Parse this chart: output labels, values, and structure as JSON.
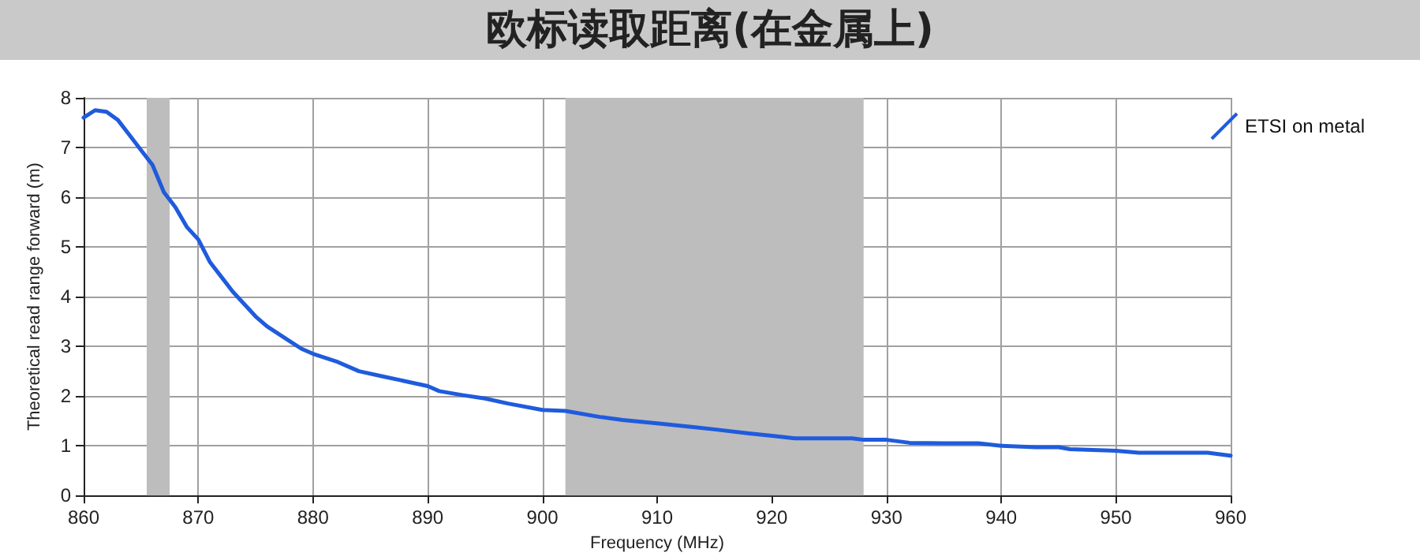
{
  "chart_data": {
    "type": "line",
    "title": "欧标读取距离(在金属上)",
    "xlabel": "Frequency (MHz)",
    "ylabel": "Theoretical read range forward (m)",
    "x": [
      860,
      861,
      862,
      863,
      864,
      865,
      866,
      867,
      868,
      869,
      870,
      871,
      872,
      873,
      874,
      875,
      876,
      877,
      878,
      879,
      880,
      882,
      884,
      886,
      888,
      890,
      891,
      893,
      895,
      897,
      900,
      902,
      905,
      907,
      910,
      913,
      915,
      918,
      920,
      922,
      925,
      927,
      928,
      930,
      932,
      935,
      938,
      940,
      943,
      945,
      946,
      950,
      952,
      955,
      958,
      960
    ],
    "series": [
      {
        "name": "ETSI on metal",
        "color": "#1f5bdc",
        "values": [
          7.6,
          7.75,
          7.72,
          7.55,
          7.25,
          6.95,
          6.65,
          6.1,
          5.8,
          5.4,
          5.15,
          4.7,
          4.4,
          4.1,
          3.85,
          3.6,
          3.4,
          3.25,
          3.1,
          2.95,
          2.85,
          2.7,
          2.5,
          2.4,
          2.3,
          2.2,
          2.1,
          2.02,
          1.95,
          1.85,
          1.72,
          1.7,
          1.58,
          1.52,
          1.45,
          1.38,
          1.33,
          1.25,
          1.2,
          1.15,
          1.15,
          1.15,
          1.12,
          1.12,
          1.06,
          1.05,
          1.05,
          1.0,
          0.97,
          0.97,
          0.93,
          0.9,
          0.86,
          0.86,
          0.86,
          0.8
        ]
      }
    ],
    "xlim": [
      860,
      960
    ],
    "xticks": [
      860,
      870,
      880,
      890,
      900,
      910,
      920,
      930,
      940,
      950,
      960
    ],
    "ylim": [
      0,
      8
    ],
    "yticks": [
      0,
      1,
      2,
      3,
      4,
      5,
      6,
      7,
      8
    ],
    "bands": [
      {
        "axis": "x",
        "from": 865.5,
        "to": 867.5,
        "color": "#bdbdbd"
      },
      {
        "axis": "x",
        "from": 902,
        "to": 928,
        "color": "#bdbdbd"
      }
    ],
    "grid": true,
    "legend": "top right",
    "marker": "none",
    "line_style": "solid"
  }
}
